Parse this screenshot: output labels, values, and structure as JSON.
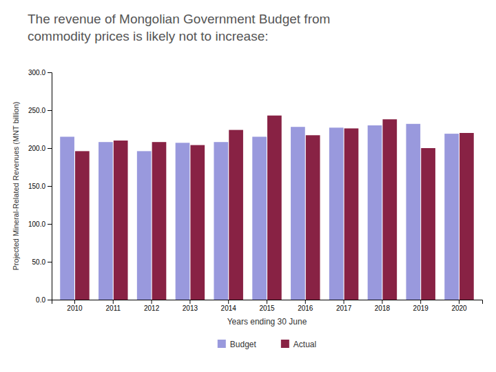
{
  "chart_data": {
    "type": "bar",
    "title": "The revenue of Mongolian Government Budget from\ncommodity prices is likely not to increase:",
    "x_label": "Years ending 30 June",
    "y_label": "Projected Mineral-Related Revenues (MNT billion)",
    "categories": [
      "2010",
      "2011",
      "2012",
      "2013",
      "2014",
      "2015",
      "2016",
      "2017",
      "2018",
      "2019",
      "2020"
    ],
    "series": [
      {
        "name": "Budget",
        "color": "#9999DD",
        "values": [
          215,
          208,
          196,
          207,
          208,
          215,
          228,
          227,
          230,
          232,
          219
        ]
      },
      {
        "name": "Actual",
        "color": "#882244",
        "values": [
          196,
          210,
          208,
          204,
          224,
          243,
          217,
          226,
          238,
          200,
          220
        ]
      }
    ],
    "ylim": [
      0,
      300
    ],
    "yticks": [
      {
        "value": 0,
        "label": "0.0"
      },
      {
        "value": 50,
        "label": "50.0"
      },
      {
        "value": 100,
        "label": "100.0"
      },
      {
        "value": 150,
        "label": "150.0"
      },
      {
        "value": 200,
        "label": "200.0"
      },
      {
        "value": 250,
        "label": "250.0"
      },
      {
        "value": 300,
        "label": "300.0"
      }
    ],
    "grid": false,
    "legend": "bottom"
  }
}
